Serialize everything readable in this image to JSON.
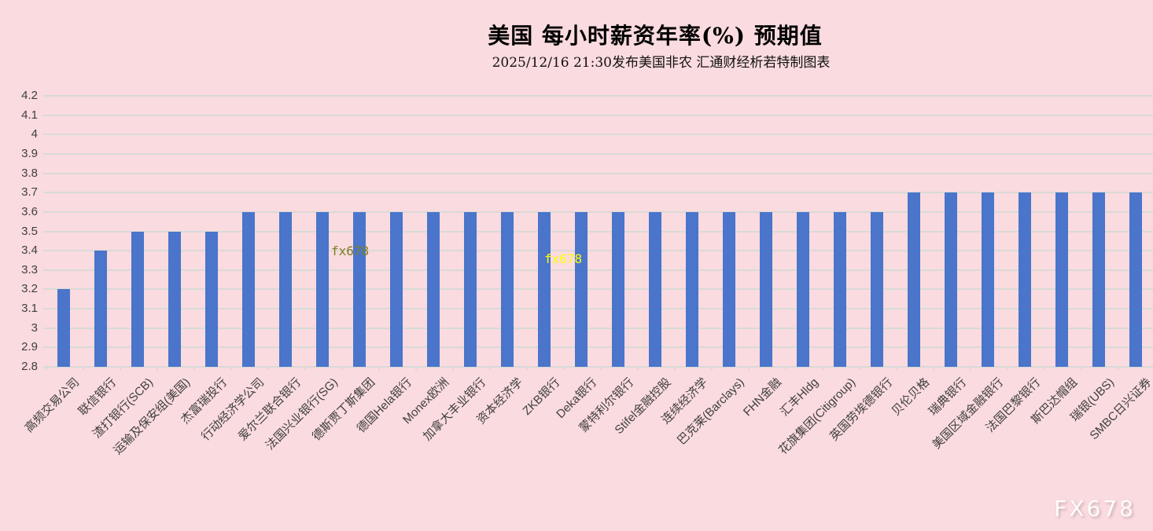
{
  "title": "美国 每小时薪资年率(%) 预期值",
  "subtitle": "2025/12/16 21:30发布美国非农 汇通财经析若特制图表",
  "watermarks": {
    "inline_olive": "fx678",
    "inline_yellow": "fx678",
    "corner": "FX678"
  },
  "colors": {
    "background": "#fadbdf",
    "bar": "#4a75ca",
    "gridline": "#d9dad8",
    "axis_text": "#3f3f3f",
    "watermark_olive": "#827d20",
    "watermark_yellow": "#ffff00"
  },
  "chart_data": {
    "type": "bar",
    "title": "美国 每小时薪资年率(%) 预期值",
    "subtitle": "2025/12/16 21:30发布美国非农 汇通财经析若特制图表",
    "xlabel": "",
    "ylabel": "",
    "ylim": [
      2.8,
      4.2
    ],
    "ytick_step": 0.1,
    "yticks": [
      "4.2",
      "4.1",
      "4",
      "3.9",
      "3.8",
      "3.7",
      "3.6",
      "3.5",
      "3.4",
      "3.3",
      "3.2",
      "3.1",
      "3",
      "2.9",
      "2.8"
    ],
    "grid": true,
    "legend": false,
    "categories": [
      "高频交易公司",
      "联信银行",
      "渣打银行(SCB)",
      "运输及保安组(美国)",
      "杰富瑞投行",
      "行动经济学公司",
      "爱尔兰联合银行",
      "法国兴业银行(SG)",
      "德斯贾丁斯集团",
      "德国Hela银行",
      "Monex欧洲",
      "加拿大丰业银行",
      "资本经济学",
      "ZKB银行",
      "Deka银行",
      "蒙特利尔银行",
      "Stifel金融控股",
      "连续经济学",
      "巴克莱(Barclays)",
      "FHN金融",
      "汇丰Hldg",
      "花旗集团(Citigroup)",
      "英国劳埃德银行",
      "贝伦贝格",
      "瑞典银行",
      "美国区域金融银行",
      "法国巴黎银行",
      "斯巴达帽组",
      "瑞银(UBS)",
      "SMBC日兴证券"
    ],
    "values": [
      3.2,
      3.4,
      3.5,
      3.5,
      3.5,
      3.6,
      3.6,
      3.6,
      3.6,
      3.6,
      3.6,
      3.6,
      3.6,
      3.6,
      3.6,
      3.6,
      3.6,
      3.6,
      3.6,
      3.6,
      3.6,
      3.6,
      3.6,
      3.7,
      3.7,
      3.7,
      3.7,
      3.7,
      3.7,
      3.7
    ]
  }
}
